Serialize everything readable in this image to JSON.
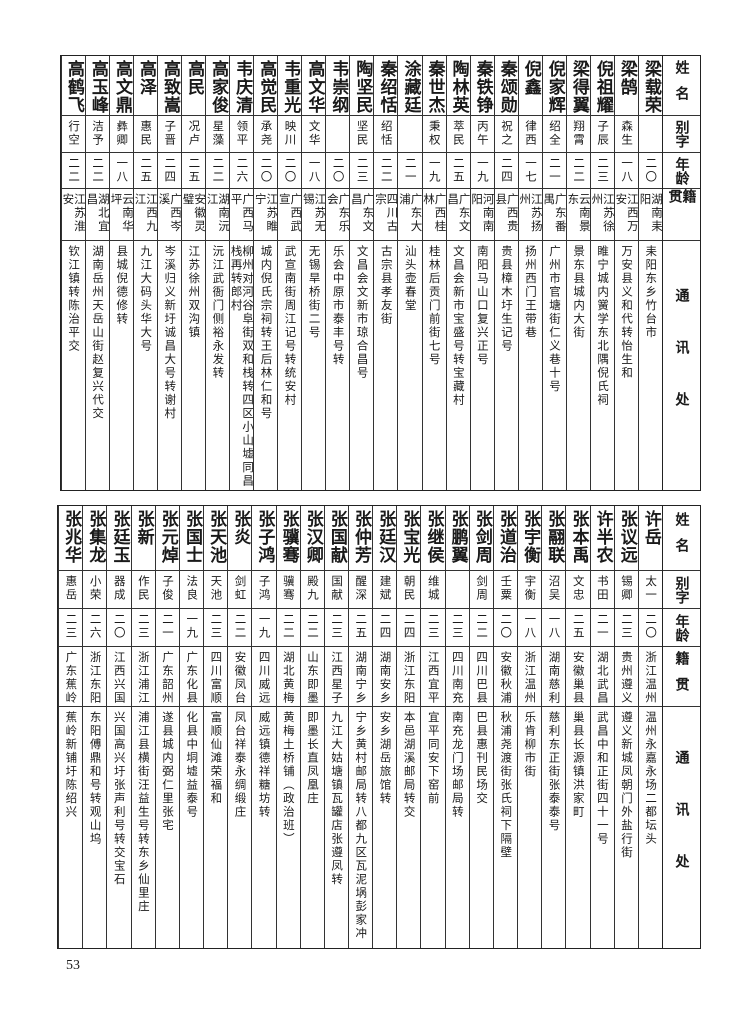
{
  "headers": [
    "姓名",
    "别字",
    "年龄",
    "籍贯",
    "通讯处"
  ],
  "top_table": [
    [
      "梁载荣",
      "",
      "二〇",
      "湖南耒阳",
      "耒阳东乡竹台市"
    ],
    [
      "梁鹄",
      "森生",
      "一八",
      "江西万安",
      "万安县义和代转怡生和"
    ],
    [
      "倪祖耀",
      "子辰",
      "二三",
      "江苏徐州",
      "睢宁城内黉学东北隅倪氏祠"
    ],
    [
      "梁得翼",
      "翔霄",
      "二二",
      "云南景东",
      "景东县城内大街"
    ],
    [
      "倪家辉",
      "绍全",
      "二一",
      "广东番禺",
      "广州市官塘街仁义巷十号"
    ],
    [
      "倪鑫",
      "律西",
      "一七",
      "江苏扬州",
      "扬州西门王带巷"
    ],
    [
      "秦颂勋",
      "祝之",
      "二四",
      "广西贵县",
      "贵县樟木圩生记号"
    ],
    [
      "秦铁铮",
      "丙午",
      "一九",
      "河南南阳",
      "南阳马山口复兴正号"
    ],
    [
      "陶林英",
      "萃民",
      "二五",
      "广东文昌",
      "文昌会新市宝盛号转宝藏村"
    ],
    [
      "秦世杰",
      "秉权",
      "一九",
      "广西桂林",
      "桂林后贡门前街七号"
    ],
    [
      "涂藏廷",
      "",
      "二一",
      "广东大浦",
      "汕头壶春堂"
    ],
    [
      "秦绍恬",
      "绍恬",
      "二二",
      "四川古宗",
      "古宗县孝友街"
    ],
    [
      "陶坚民",
      "坚民",
      "二三",
      "广东文昌",
      "文昌会文新市琼合昌号"
    ],
    [
      "韦崇纲",
      "",
      "二〇",
      "广东乐会",
      "乐会中原市泰丰号转"
    ],
    [
      "高文华",
      "文华",
      "一八",
      "江苏无锡",
      "无锡旱桥街二号"
    ],
    [
      "韦重光",
      "映川",
      "二〇",
      "广西武宣",
      "武宣南街周江记号转统安村"
    ],
    [
      "高觉民",
      "承尧",
      "二〇",
      "江苏睢宁",
      "城内倪氏宗祠转王后林仁和号"
    ],
    [
      "韦庆清",
      "领平",
      "二六",
      "广西马平",
      "柳州对河谷阜街双和栈转四区小山墟同昌栈再转郎村"
    ],
    [
      "高家俊",
      "星藻",
      "二二",
      "湖南沅江",
      "沅江武衙门侧裕永发转"
    ],
    [
      "高民",
      "况卢",
      "二五",
      "安徽灵璧",
      "江苏徐州双沟镇"
    ],
    [
      "高致嵩",
      "子晋",
      "二四",
      "广西岑溪",
      "岑溪归义新圩诚昌大号转谢村"
    ],
    [
      "高泽",
      "惠民",
      "二五",
      "江西九江",
      "九江大码头华大号"
    ],
    [
      "高文鼎",
      "彝卿",
      "一八",
      "云南华坪",
      "县城倪德修转"
    ],
    [
      "高玉峰",
      "洁予",
      "二二",
      "湖北宜昌",
      "湖南岳州天岳山街赵复兴代交"
    ],
    [
      "高鹤飞",
      "行空",
      "二二",
      "江苏淮安",
      "钦江镇转陈治平交"
    ]
  ],
  "bottom_table": [
    [
      "许岳",
      "太一",
      "二〇",
      "浙江温州",
      "温州永嘉永场二都坛头"
    ],
    [
      "张议远",
      "锡卿",
      "二三",
      "贵州遵义",
      "遵义新城凤朝门外盐行街"
    ],
    [
      "许半农",
      "书田",
      "二一",
      "湖北武昌",
      "武昌中和正街四十一号"
    ],
    [
      "张本禹",
      "文忠",
      "二五",
      "安徽巢县",
      "巢县长源镇洪家町"
    ],
    [
      "张翮联",
      "沼吴",
      "一八",
      "湖南慈利",
      "慈利东正街张泰泰号"
    ],
    [
      "张宇衡",
      "宇衡",
      "一八",
      "浙江温州",
      "乐肯柳市街"
    ],
    [
      "张道治",
      "壬粟",
      "二〇",
      "安徽秋浦",
      "秋浦尧渡街张氏祠下隔壁"
    ],
    [
      "张剑周",
      "剑周",
      "二二",
      "四川巴县",
      "巴县惠刊民场交"
    ],
    [
      "张鹏翼",
      "",
      "二三",
      "四川南充",
      "南充龙门场邮局转"
    ],
    [
      "张继侯",
      "维城",
      "二三",
      "江西宜平",
      "宜平同安下窑前"
    ],
    [
      "张宝光",
      "朝民",
      "二四",
      "浙江东阳",
      "本邑湖溪邮局转交"
    ],
    [
      "张廷汉",
      "建斌",
      "二四",
      "湖南安乡",
      "安乡湖岳旅馆转"
    ],
    [
      "张仲芳",
      "醒深",
      "二五",
      "湖南宁乡",
      "宁乡黄村邮局转八都九区瓦泥埚彭家冲"
    ],
    [
      "张国献",
      "国献",
      "二三",
      "江西星子",
      "九江大姑塘镇瓦罐店张遵凤转"
    ],
    [
      "张汉卿",
      "殿九",
      "二二",
      "山东即墨",
      "即墨长直凤凰庄"
    ],
    [
      "张骥骞",
      "骥骞",
      "二二",
      "湖北黄梅",
      "黄梅土桥铺（政治班）"
    ],
    [
      "张子鸿",
      "子鸿",
      "一九",
      "四川威远",
      "威远镇德祥糖坊转"
    ],
    [
      "张炎",
      "剑虹",
      "二二",
      "安徽凤台",
      "凤台祥泰永绸缎庄"
    ],
    [
      "张天池",
      "天池",
      "二三",
      "四川富顺",
      "富顺仙滩荣福和"
    ],
    [
      "张国士",
      "法良",
      "一九",
      "广东化县",
      "化县中垌墟益泰号"
    ],
    [
      "张元焯",
      "子俊",
      "二一",
      "广东韶州",
      "遂县城内弼仁里张宅"
    ],
    [
      "张新",
      "作民",
      "二三",
      "浙江浦江",
      "浦江县横街汪益生号转东乡仙里庄"
    ],
    [
      "张廷玉",
      "器成",
      "二〇",
      "江西兴国",
      "兴国高兴圩张声利号转交宝石"
    ],
    [
      "张集龙",
      "小荣",
      "二六",
      "浙江东阳",
      "东阳傅鼎和号转观山坞"
    ],
    [
      "张兆华",
      "惠岳",
      "二三",
      "广东蕉岭",
      "蕉岭新铺圩陈绍兴"
    ]
  ],
  "page_number": "53"
}
